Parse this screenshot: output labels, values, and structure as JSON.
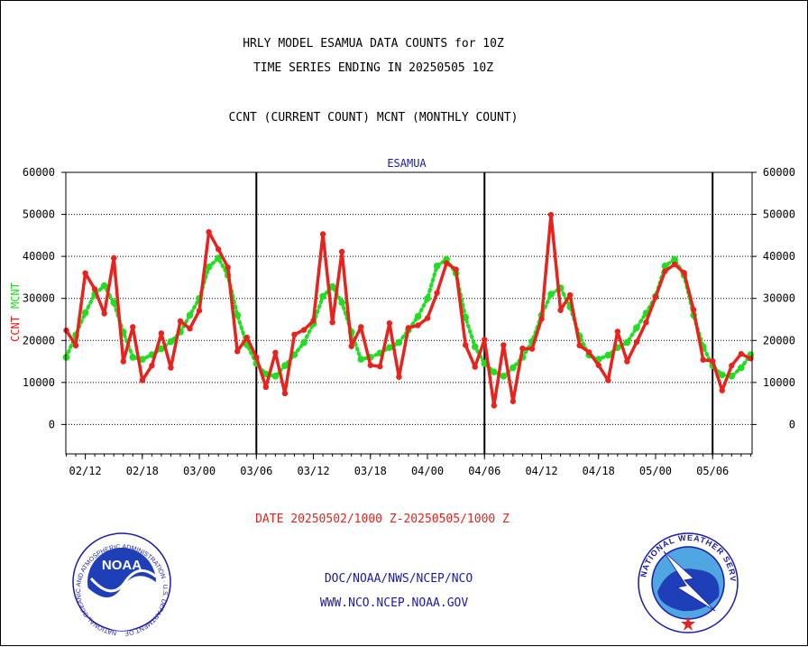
{
  "titles": {
    "line1": "HRLY MODEL ESAMUA DATA COUNTS for 10Z",
    "line2": "TIME SERIES ENDING IN 20250505 10Z",
    "line3": "CCNT (CURRENT COUNT) MCNT (MONTHLY COUNT)"
  },
  "plot_label": "ESAMUA",
  "date_label": "DATE 20250502/1000 Z-20250505/1000 Z",
  "footer": {
    "line1": "DOC/NOAA/NWS/NCEP/NCO",
    "line2": "WWW.NCO.NCEP.NOAA.GOV"
  },
  "logos": {
    "noaa_text": "NOAA",
    "noaa_ring": "NATIONAL OCEANIC AND ATMOSPHERIC ADMINISTRATION · U.S. DEPARTMENT OF COMMERCE",
    "nws_ring": "NATIONAL WEATHER SERVICE"
  },
  "colors": {
    "ccnt": "#e8221c",
    "mcnt": "#22dd22",
    "title": "#000000",
    "label": "#1a1aa6"
  },
  "chart_data": {
    "type": "line",
    "title": "HRLY MODEL ESAMUA DATA COUNTS for 10Z",
    "ylabel_left": [
      "CCNT",
      "MCNT"
    ],
    "xlabel": "DATE 20250502/1000 Z-20250505/1000 Z",
    "ylim": [
      -7000,
      60000
    ],
    "yticks": [
      "0",
      "10000",
      "20000",
      "30000",
      "40000",
      "50000",
      "60000"
    ],
    "ytick_values": [
      0,
      10000,
      20000,
      30000,
      40000,
      50000,
      60000
    ],
    "x_tick_labels": [
      "02/12",
      "02/18",
      "03/00",
      "03/06",
      "03/12",
      "03/18",
      "04/00",
      "04/06",
      "04/12",
      "04/18",
      "05/00",
      "05/06"
    ],
    "grid": true,
    "day_boundaries": [
      "03/00",
      "04/00",
      "05/00"
    ],
    "series": [
      {
        "name": "CCNT",
        "values": [
          22400,
          18800,
          36000,
          32200,
          26400,
          39600,
          15000,
          23200,
          10500,
          14000,
          21700,
          13500,
          24600,
          22800,
          27100,
          45800,
          41700,
          37400,
          17400,
          20700,
          16000,
          8900,
          17100,
          7400,
          21400,
          22500,
          24700,
          45300,
          24300,
          41100,
          18600,
          23200,
          14100,
          13800,
          24100,
          11300,
          23000,
          23600,
          25300,
          31300,
          38400,
          36900,
          18900,
          13700,
          20200,
          4500,
          18900,
          5500,
          18100,
          18000,
          25100,
          49900,
          27200,
          30800,
          18800,
          17200,
          14100,
          10500,
          22100,
          15000,
          19600,
          24300,
          30300,
          36500,
          38100,
          36100,
          27300,
          15400,
          15100,
          8100,
          14000,
          16800,
          15700
        ]
      },
      {
        "name": "MCNT",
        "values": [
          16000,
          21300,
          26600,
          31000,
          33000,
          29000,
          22000,
          16000,
          15500,
          16600,
          18000,
          19700,
          22000,
          26000,
          30000,
          37500,
          39600,
          35500,
          26000,
          19000,
          14500,
          12000,
          11500,
          14000,
          16600,
          19500,
          24000,
          30500,
          32800,
          29000,
          22000,
          15500,
          16000,
          17000,
          18300,
          19500,
          22500,
          25700,
          30000,
          37700,
          39300,
          36000,
          25500,
          18500,
          14500,
          12500,
          11500,
          13500,
          16000,
          19700,
          26000,
          31000,
          32500,
          28000,
          21000,
          16500,
          15500,
          16500,
          18300,
          19500,
          23000,
          26500,
          30500,
          37700,
          39300,
          35500,
          26000,
          18500,
          14000,
          11800,
          11500,
          13500,
          16600
        ]
      }
    ]
  }
}
